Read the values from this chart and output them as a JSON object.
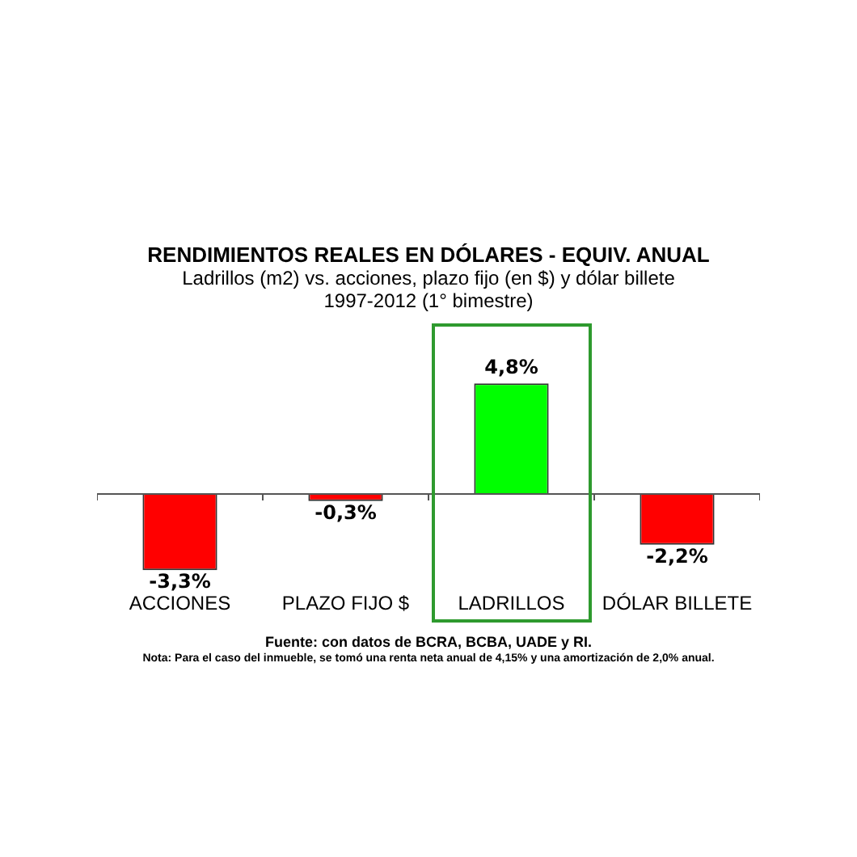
{
  "chart_data": {
    "type": "bar",
    "title": "RENDIMIENTOS REALES EN DÓLARES - EQUIV. ANUAL",
    "subtitle": "Ladrillos (m2) vs. acciones, plazo fijo (en $) y dólar billete\n1997-2012 (1° bimestre)",
    "categories": [
      "ACCIONES",
      "PLAZO FIJO $",
      "LADRILLOS",
      "DÓLAR BILLETE"
    ],
    "values": [
      -3.3,
      -0.3,
      4.8,
      -2.2
    ],
    "colors": [
      "#ff0000",
      "#ff0000",
      "#00ff00",
      "#ff0000"
    ],
    "value_labels": [
      "-3,3%",
      "-0,3%",
      "4,8%",
      "-2,2%"
    ],
    "annotations": [
      "Fuente: con datos de BCRA, BCBA, UADE y RI.",
      "Nota: Para el caso del inmueble, se tomó una renta neta anual de 4,15% y una amortización de 2,0% anual."
    ],
    "grid": false,
    "legend": false
  }
}
